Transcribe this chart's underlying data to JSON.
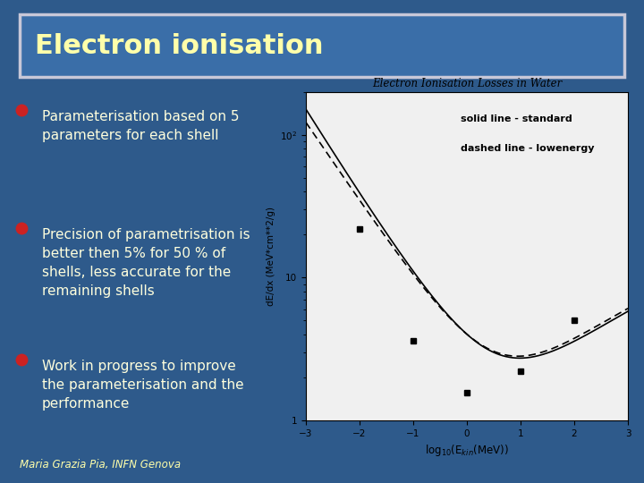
{
  "title": "Electron ionisation",
  "background_color": "#2E5A8B",
  "title_box_facecolor": "#3A6EA8",
  "title_text_color": "#FFFFAA",
  "title_border_color": "#C8C8D8",
  "bullet_color": "#CC2222",
  "bullet_text_color": "#FFFFDD",
  "bullets": [
    "Parameterisation based on 5\nparameters for each shell",
    "Precision of parametrisation is\nbetter then 5% for 50 % of\nshells, less accurate for the\nremaining shells",
    "Work in progress to improve\nthe parameterisation and the\nperformance"
  ],
  "footer_text": "Maria Grazia Pia, INFN Genova",
  "footer_color": "#FFFFAA",
  "plot_title": "Electron Ionisation Losses in Water",
  "plot_xlabel": "log$_{10}$(E$_{kin}$(MeV))",
  "plot_ylabel": "dE/dx (MeV*cm**2/g)",
  "plot_bg": "#F0F0F0",
  "legend_solid": "solid line - standard",
  "legend_dashed": "dashed line - lowenergy",
  "data_points_x": [
    -2.0,
    -1.0,
    0.0,
    1.0,
    2.0
  ],
  "data_points_y": [
    22.0,
    3.6,
    1.55,
    2.2,
    5.0
  ],
  "xlim": [
    -3,
    3
  ],
  "ylim_log": [
    1,
    200
  ]
}
